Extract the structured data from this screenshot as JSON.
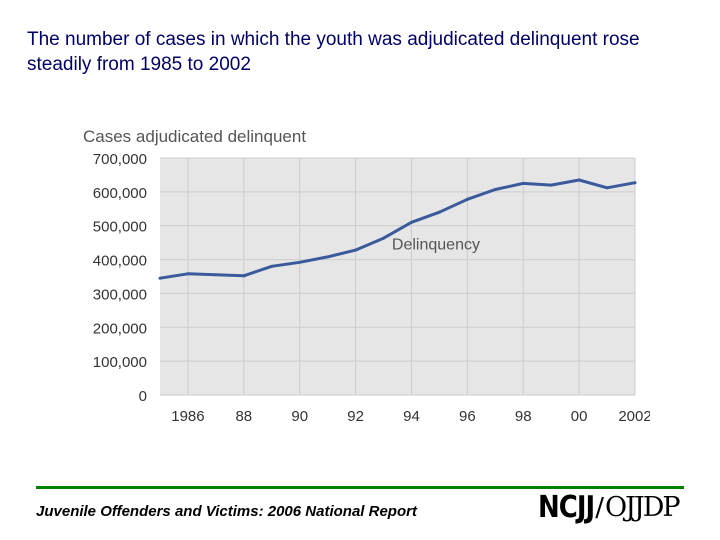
{
  "headline": "The number of cases in which the youth was adjudicated delinquent rose steadily from 1985 to 2002",
  "footer": {
    "report_title": "Juvenile Offenders and Victims: 2006 National Report",
    "logo_left": "NCJJ",
    "logo_separator": "/",
    "logo_right": "OJJDP"
  },
  "colors": {
    "headline": "#000066",
    "line": "#3a5a9c",
    "grid": "#cccccc",
    "plot_background": "#e6e6e6",
    "footer_rule": "#008000"
  },
  "chart_data": {
    "type": "line",
    "title": "Cases adjudicated delinquent",
    "xlabel": "",
    "ylabel": "",
    "ylim": [
      0,
      700000
    ],
    "xlim": [
      1985,
      2002
    ],
    "y_ticks": [
      0,
      100000,
      200000,
      300000,
      400000,
      500000,
      600000,
      700000
    ],
    "y_tick_labels": [
      "0",
      "100,000",
      "200,000",
      "300,000",
      "400,000",
      "500,000",
      "600,000",
      "700,000"
    ],
    "x_ticks": [
      1986,
      1988,
      1990,
      1992,
      1994,
      1996,
      1998,
      2000,
      2002
    ],
    "x_tick_labels": [
      "1986",
      "88",
      "90",
      "92",
      "94",
      "96",
      "98",
      "00",
      "2002"
    ],
    "grid": true,
    "series": [
      {
        "name": "Delinquency",
        "x": [
          1985,
          1986,
          1987,
          1988,
          1989,
          1990,
          1991,
          1992,
          1993,
          1994,
          1995,
          1996,
          1997,
          1998,
          1999,
          2000,
          2001,
          2002
        ],
        "values": [
          345000,
          358000,
          355000,
          352000,
          380000,
          392000,
          408000,
          428000,
          463000,
          510000,
          540000,
          578000,
          607000,
          625000,
          620000,
          635000,
          612000,
          627000
        ]
      }
    ]
  }
}
